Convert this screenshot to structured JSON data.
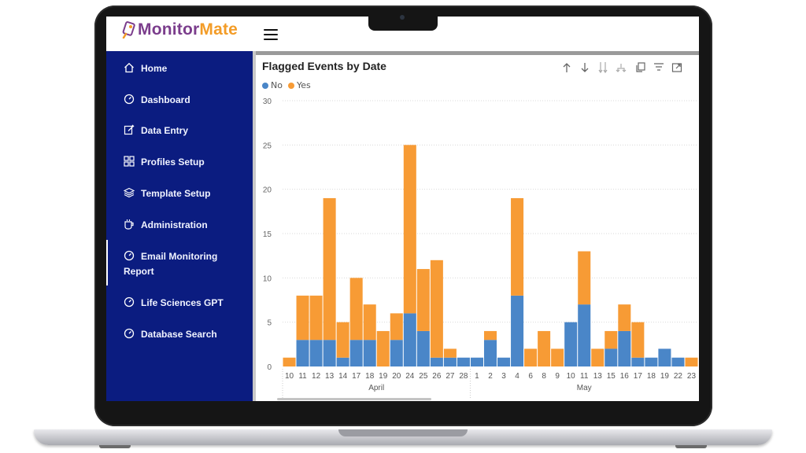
{
  "app": {
    "logo_part1": "Monitor",
    "logo_part2": "Mate"
  },
  "sidebar": {
    "items": [
      {
        "label": "Home",
        "icon": "home-icon"
      },
      {
        "label": "Dashboard",
        "icon": "gauge-icon"
      },
      {
        "label": "Data Entry",
        "icon": "edit-icon"
      },
      {
        "label": "Profiles Setup",
        "icon": "grid-icon"
      },
      {
        "label": "Template Setup",
        "icon": "layers-icon"
      },
      {
        "label": "Administration",
        "icon": "cup-icon"
      },
      {
        "label": "Email Monitoring Report",
        "icon": "gauge-icon"
      },
      {
        "label": "Life Sciences GPT",
        "icon": "gauge-icon"
      },
      {
        "label": "Database Search",
        "icon": "gauge-icon"
      }
    ],
    "active_item": "Email Monitoring Report"
  },
  "colors": {
    "sidebar": "#0b1c80",
    "no": "#4a86c8",
    "yes": "#f79b35",
    "brand_purple": "#7b3d8c",
    "brand_orange": "#f39c27"
  },
  "toolbar_icons": [
    "sort-up-icon",
    "sort-down-icon",
    "expand-hierarchy-icon",
    "drill-icon",
    "copy-icon",
    "filter-icon",
    "focus-mode-icon"
  ],
  "chart_data": {
    "type": "bar",
    "stacked": true,
    "title": "Flagged Events by Date",
    "legend": {
      "position": "top-left",
      "entries": [
        "No",
        "Yes"
      ]
    },
    "ylim": [
      0,
      30
    ],
    "yticks": [
      0,
      5,
      10,
      15,
      20,
      25,
      30
    ],
    "grid": true,
    "categories": [
      "10",
      "11",
      "12",
      "13",
      "14",
      "17",
      "18",
      "19",
      "20",
      "24",
      "25",
      "26",
      "27",
      "28",
      "1",
      "2",
      "3",
      "4",
      "6",
      "8",
      "9",
      "10",
      "11",
      "13",
      "15",
      "16",
      "17",
      "18",
      "19",
      "22",
      "23"
    ],
    "groups": [
      {
        "label": "April",
        "start": 0,
        "end": 13
      },
      {
        "label": "May",
        "start": 14,
        "end": 30
      }
    ],
    "series": [
      {
        "name": "No",
        "values": [
          0,
          3,
          3,
          3,
          1,
          3,
          3,
          0,
          3,
          6,
          4,
          1,
          1,
          1,
          1,
          3,
          1,
          8,
          0,
          0,
          0,
          5,
          7,
          0,
          2,
          4,
          1,
          1,
          2,
          1,
          0
        ]
      },
      {
        "name": "Yes",
        "values": [
          1,
          5,
          5,
          16,
          4,
          7,
          4,
          4,
          3,
          19,
          7,
          11,
          1,
          0,
          0,
          1,
          0,
          11,
          2,
          4,
          2,
          0,
          6,
          2,
          2,
          3,
          4,
          0,
          0,
          0,
          1
        ]
      }
    ]
  }
}
